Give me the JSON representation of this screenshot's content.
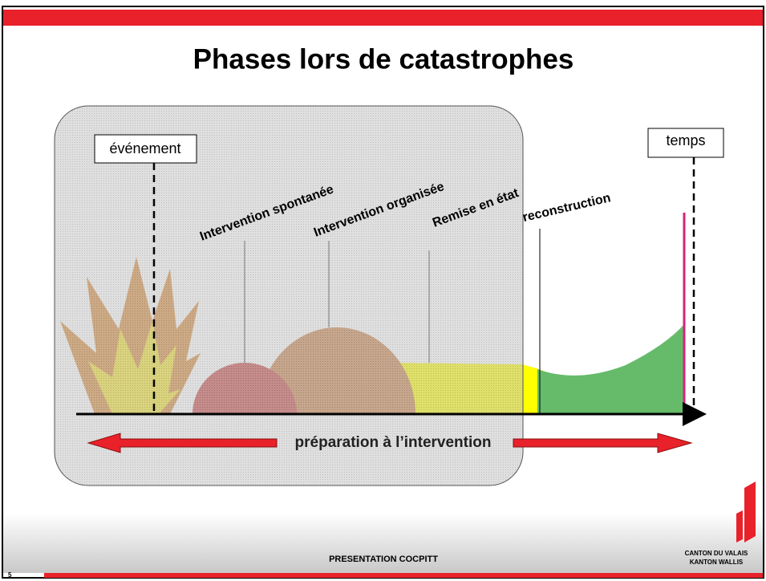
{
  "title": "Phases lors de catastrophes",
  "boxes": {
    "event": "événement",
    "time": "temps"
  },
  "phases": [
    "Intervention spontanée",
    "Intervention organisée",
    "Remise en état",
    "reconstruction"
  ],
  "arrow_label": "préparation à l’intervention",
  "footer": {
    "center": "PRESENTATION COCPITT",
    "logo_line1": "CANTON DU VALAIS",
    "logo_line2": "KANTON WALLIS",
    "page": "5"
  }
}
